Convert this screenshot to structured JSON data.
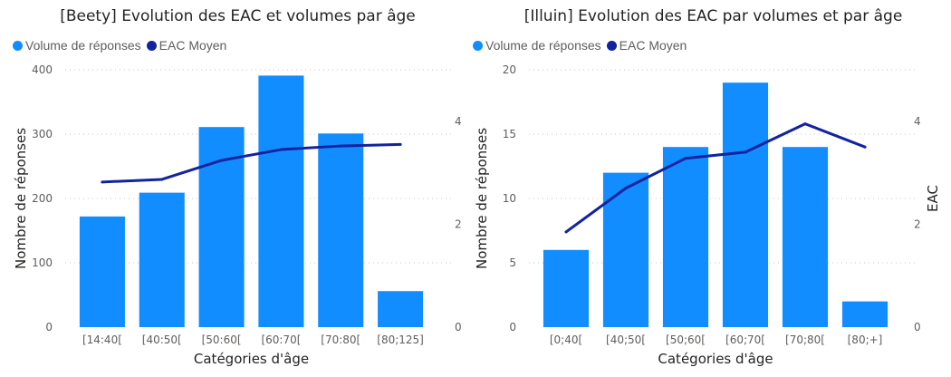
{
  "colors": {
    "bar": "#118DFF",
    "line": "#12239E",
    "grid": "#c8c6c4",
    "tick": "#605e5c",
    "axis_title": "#252423"
  },
  "chart_data": [
    {
      "type": "bar+line",
      "title": "[Beety] Evolution des EAC et volumes par âge",
      "legend": [
        "Volume de réponses",
        "EAC Moyen"
      ],
      "legend_placement": "top-left",
      "xlabel": "Catégories d'âge",
      "ylabel": "Nombre de réponses",
      "y2label": "",
      "categories": [
        "[14:40[",
        "[40:50[",
        "[50:60[",
        "[60:70[",
        "[70:80[",
        "[80;125]"
      ],
      "ylim": [
        0,
        400
      ],
      "yticks": [
        0,
        100,
        200,
        300,
        400
      ],
      "y2lim": [
        0,
        5
      ],
      "y2ticks": [
        0,
        2,
        4
      ],
      "series": [
        {
          "name": "Volume de réponses",
          "kind": "bar",
          "values": [
            172,
            209,
            311,
            391,
            301,
            56
          ]
        },
        {
          "name": "EAC Moyen",
          "kind": "line",
          "axis": "y2",
          "values": [
            2.82,
            2.87,
            3.24,
            3.45,
            3.52,
            3.55
          ]
        }
      ],
      "grid": true
    },
    {
      "type": "bar+line",
      "title": "[Illuin] Evolution des EAC par volumes et par âge",
      "legend": [
        "Volume de réponses",
        "EAC Moyen"
      ],
      "legend_placement": "top-left",
      "xlabel": "Catégories d'âge",
      "ylabel": "Nombre de réponses",
      "y2label": "EAC",
      "categories": [
        "[0;40[",
        "[40;50[",
        "[50;60[",
        "[60;70[",
        "[70;80[",
        "[80;+]"
      ],
      "ylim": [
        0,
        20
      ],
      "yticks": [
        0,
        5,
        10,
        15,
        20
      ],
      "y2lim": [
        0,
        5
      ],
      "y2ticks": [
        0,
        2,
        4
      ],
      "series": [
        {
          "name": "Volume de réponses",
          "kind": "bar",
          "values": [
            6,
            12,
            14,
            19,
            14,
            2
          ]
        },
        {
          "name": "EAC Moyen",
          "kind": "line",
          "axis": "y2",
          "values": [
            1.85,
            2.7,
            3.28,
            3.4,
            3.95,
            3.5
          ]
        }
      ],
      "grid": true
    }
  ]
}
